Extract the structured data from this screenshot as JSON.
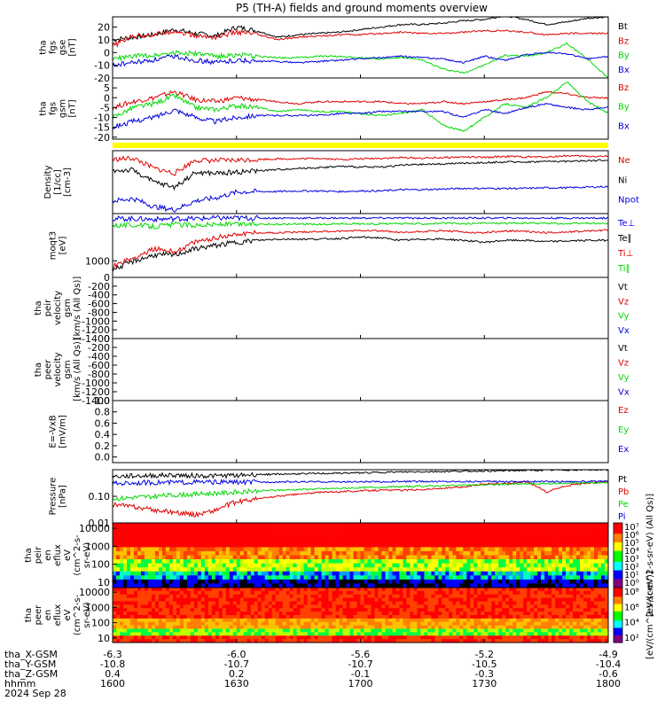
{
  "title": "P5 (TH-A) fields and ground moments overview",
  "colors": {
    "black": "#000000",
    "red": "#e00000",
    "green": "#00d800",
    "blue": "#0000e0",
    "yellow": "#ffff00"
  },
  "chart_data": [
    {
      "type": "line",
      "ylabel": [
        "tha",
        "fgs",
        "gse",
        "[nT]"
      ],
      "ylim": [
        -20,
        28
      ],
      "yticks": [
        "20",
        "10",
        "0",
        "-10",
        "-20"
      ],
      "ytick_values": [
        20,
        10,
        0,
        -10,
        -20
      ],
      "series": [
        {
          "name": "Bt",
          "color": "black",
          "values": [
            10,
            12,
            14,
            18,
            15,
            13,
            20,
            17,
            12,
            14,
            15,
            16,
            18,
            20,
            22,
            22,
            23,
            25,
            26,
            29,
            26,
            22,
            24,
            27,
            28
          ]
        },
        {
          "name": "Bz",
          "color": "red",
          "values": [
            5,
            13,
            14,
            17,
            13,
            12,
            16,
            14,
            10,
            12,
            13,
            14,
            14,
            15,
            16,
            15,
            15,
            16,
            17,
            17,
            16,
            14,
            15,
            15,
            15
          ]
        },
        {
          "name": "By",
          "color": "green",
          "values": [
            -5,
            -3,
            -2,
            0,
            -1,
            -3,
            -2,
            -3,
            -4,
            -4,
            -3,
            -3,
            -4,
            -5,
            -4,
            -6,
            -13,
            -16,
            -10,
            -2,
            -3,
            0,
            7,
            -5,
            -20
          ]
        },
        {
          "name": "Bx",
          "color": "blue",
          "values": [
            -10,
            -8,
            -6,
            -3,
            -6,
            -8,
            -6,
            -7,
            -7,
            -8,
            -7,
            -6,
            -5,
            -4,
            -3,
            -4,
            -5,
            -8,
            -3,
            -6,
            -2,
            0,
            -1,
            -5,
            -3
          ]
        }
      ]
    },
    {
      "type": "line",
      "ylabel": [
        "tha",
        "fgs",
        "gsm",
        "[nT]"
      ],
      "ylim": [
        -21,
        10
      ],
      "yticks": [
        "5",
        "0",
        "-5",
        "-10",
        "-15",
        "-20"
      ],
      "ytick_values": [
        5,
        0,
        -5,
        -10,
        -15,
        -20
      ],
      "series": [
        {
          "name": "Bz",
          "color": "red",
          "values": [
            -5,
            -2,
            0,
            3,
            -1,
            -2,
            0,
            -1,
            -2,
            -3,
            -2,
            -2,
            -2,
            -2,
            -3,
            -3,
            -2,
            -3,
            -2,
            -1,
            0,
            3,
            2,
            0,
            0
          ]
        },
        {
          "name": "By",
          "color": "green",
          "values": [
            -10,
            -5,
            -3,
            1,
            -5,
            -6,
            -4,
            -5,
            -7,
            -6,
            -7,
            -7,
            -8,
            -9,
            -8,
            -6,
            -14,
            -17,
            -10,
            -3,
            -5,
            0,
            8,
            -2,
            -8
          ]
        },
        {
          "name": "Bx",
          "color": "blue",
          "values": [
            -15,
            -12,
            -10,
            -6,
            -10,
            -12,
            -10,
            -9,
            -9,
            -9,
            -9,
            -8,
            -8,
            -7,
            -7,
            -7,
            -7,
            -10,
            -6,
            -8,
            -5,
            -3,
            -5,
            -6,
            -5
          ]
        }
      ]
    },
    {
      "type": "line",
      "ylabel": [
        "Density",
        "[1/cc]",
        "[cm-3]"
      ],
      "ylim": [
        0,
        10
      ],
      "series": [
        {
          "name": "Ne",
          "color": "red",
          "values": [
            8.6,
            8.8,
            7.2,
            6.4,
            8.5,
            8.4,
            8.5,
            8.6,
            8.7,
            8.7,
            8.8,
            8.6,
            8.7,
            8.8,
            8.9,
            8.8,
            8.9,
            9.0,
            8.9,
            9.1,
            9.0,
            9.0,
            9.2,
            9.1,
            9.1
          ]
        },
        {
          "name": "Ni",
          "color": "black",
          "values": [
            6.8,
            6.9,
            5.0,
            4.2,
            6.5,
            6.4,
            6.6,
            6.8,
            7.0,
            7.2,
            7.3,
            7.5,
            7.4,
            7.4,
            7.7,
            7.8,
            7.9,
            8.0,
            8.1,
            8.2,
            8.2,
            8.3,
            8.3,
            8.4,
            8.5
          ]
        },
        {
          "name": "Npot",
          "color": "blue",
          "values": [
            2.0,
            2.4,
            1.1,
            0.6,
            2.0,
            2.5,
            3.4,
            3.5,
            3.5,
            3.6,
            3.6,
            3.5,
            3.6,
            3.6,
            3.8,
            3.8,
            3.9,
            4.0,
            4.0,
            4.0,
            4.0,
            4.1,
            4.1,
            4.2,
            4.3
          ]
        }
      ]
    },
    {
      "type": "line",
      "ylabel": [
        "moqt3",
        "[eV]"
      ],
      "ylim": [
        0,
        10
      ],
      "yticks": [
        "1000"
      ],
      "ytick_values": [
        2.6
      ],
      "series": [
        {
          "name": "Te⊥",
          "color": "blue",
          "values": [
            9.2,
            9.2,
            9.1,
            9.2,
            9.2,
            9.3,
            9.3,
            9.3,
            9.3,
            9.3,
            9.3,
            9.3,
            9.3,
            9.3,
            9.3,
            9.3,
            9.3,
            9.3,
            9.3,
            9.3,
            9.3,
            9.3,
            9.3,
            9.3,
            9.3
          ]
        },
        {
          "name": "Te∥",
          "color": "black",
          "values": [
            1.2,
            2.5,
            3.5,
            3.5,
            4.5,
            5.0,
            5.5,
            5.8,
            6.0,
            6.0,
            6.0,
            6.1,
            6.3,
            6.2,
            5.8,
            6.0,
            6.0,
            5.8,
            5.5,
            5.8,
            5.8,
            5.6,
            5.7,
            5.8,
            5.8
          ]
        },
        {
          "name": "Ti⊥",
          "color": "red",
          "values": [
            1.8,
            3.0,
            4.5,
            4.0,
            5.5,
            6.2,
            6.8,
            7.0,
            7.0,
            7.1,
            7.2,
            7.2,
            7.4,
            7.3,
            7.0,
            7.2,
            7.3,
            7.1,
            7.0,
            7.3,
            7.2,
            7.0,
            7.1,
            7.3,
            7.4
          ]
        },
        {
          "name": "Ti∥",
          "color": "green",
          "values": [
            8.2,
            8.2,
            8.0,
            8.3,
            8.2,
            8.3,
            8.3,
            8.4,
            8.3,
            8.4,
            8.3,
            8.4,
            8.4,
            8.4,
            8.4,
            8.4,
            8.5,
            8.4,
            8.5,
            8.5,
            8.5,
            8.5,
            8.4,
            8.5,
            8.4
          ]
        }
      ]
    },
    {
      "type": "line",
      "ylabel": [
        "tha",
        "peir",
        "velocity",
        "gsm",
        "[km/s (All Qs)]"
      ],
      "ylim": [
        -1400,
        0
      ],
      "yticks": [
        "0",
        "-200",
        "-400",
        "-600",
        "-800",
        "-1000",
        "-1200",
        "-1400"
      ],
      "ytick_values": [
        0,
        -200,
        -400,
        -600,
        -800,
        -1000,
        -1200,
        -1400
      ],
      "series": [
        {
          "name": "Vt",
          "color": "black",
          "values": []
        },
        {
          "name": "Vz",
          "color": "red",
          "values": []
        },
        {
          "name": "Vy",
          "color": "green",
          "values": []
        },
        {
          "name": "Vx",
          "color": "blue",
          "values": []
        }
      ]
    },
    {
      "type": "line",
      "ylabel": [
        "tha",
        "peer",
        "velocity",
        "gsm",
        "[km/s (All Qs)]"
      ],
      "ylim": [
        -1400,
        0
      ],
      "yticks": [
        "0",
        "-200",
        "-400",
        "-600",
        "-800",
        "-1000",
        "-1200",
        "-1400"
      ],
      "ytick_values": [
        0,
        -200,
        -400,
        -600,
        -800,
        -1000,
        -1200,
        -1400
      ],
      "series": [
        {
          "name": "Vt",
          "color": "black",
          "values": []
        },
        {
          "name": "Vz",
          "color": "red",
          "values": []
        },
        {
          "name": "Vy",
          "color": "green",
          "values": []
        },
        {
          "name": "Vx",
          "color": "blue",
          "values": []
        }
      ]
    },
    {
      "type": "line",
      "ylabel": [
        "E=-VxB",
        "[mV/m]"
      ],
      "ylim": [
        -0.1,
        1.0
      ],
      "yticks": [
        "1.0",
        "0.8",
        "0.6",
        "0.4",
        "0.2",
        "0.0"
      ],
      "ytick_values": [
        1.0,
        0.8,
        0.6,
        0.4,
        0.2,
        0.0
      ],
      "series": [
        {
          "name": "Ez",
          "color": "red",
          "values": []
        },
        {
          "name": "Ey",
          "color": "green",
          "values": []
        },
        {
          "name": "Ex",
          "color": "blue",
          "values": []
        }
      ]
    },
    {
      "type": "line",
      "yscale": "log",
      "ylabel": [
        "Pressure",
        "[nPa]"
      ],
      "ylim": [
        0.01,
        1.0
      ],
      "yticks": [
        "0.10",
        "0.01"
      ],
      "ytick_values": [
        0.1,
        0.01
      ],
      "series": [
        {
          "name": "Pt",
          "color": "black",
          "values": [
            0.55,
            0.58,
            0.6,
            0.62,
            0.6,
            0.58,
            0.62,
            0.66,
            0.68,
            0.7,
            0.72,
            0.74,
            0.76,
            0.8,
            0.82,
            0.84,
            0.86,
            0.88,
            0.9,
            0.92,
            0.94,
            0.96,
            0.98,
            1.0,
            1.0
          ]
        },
        {
          "name": "Pb",
          "color": "red",
          "values": [
            0.05,
            0.04,
            0.03,
            0.025,
            0.02,
            0.03,
            0.06,
            0.08,
            0.1,
            0.12,
            0.14,
            0.15,
            0.16,
            0.17,
            0.17,
            0.18,
            0.2,
            0.22,
            0.3,
            0.3,
            0.35,
            0.14,
            0.25,
            0.32,
            0.35
          ]
        },
        {
          "name": "Pe",
          "color": "green",
          "values": [
            0.08,
            0.09,
            0.1,
            0.11,
            0.12,
            0.13,
            0.14,
            0.16,
            0.17,
            0.18,
            0.19,
            0.2,
            0.21,
            0.22,
            0.23,
            0.24,
            0.25,
            0.26,
            0.27,
            0.28,
            0.29,
            0.3,
            0.31,
            0.32,
            0.33
          ]
        },
        {
          "name": "Pi",
          "color": "blue",
          "values": [
            0.3,
            0.32,
            0.33,
            0.33,
            0.34,
            0.34,
            0.34,
            0.34,
            0.35,
            0.35,
            0.35,
            0.35,
            0.35,
            0.35,
            0.36,
            0.36,
            0.36,
            0.36,
            0.36,
            0.36,
            0.36,
            0.36,
            0.36,
            0.36,
            0.36
          ]
        }
      ]
    },
    {
      "type": "heatmap",
      "yscale": "log",
      "ylabel": [
        "tha",
        "peir",
        "en",
        "eflux",
        "eV",
        "(cm^2-s-",
        "sr-eV)"
      ],
      "yticks": [
        "10000",
        "1000",
        "100",
        "10"
      ],
      "ytick_values": [
        10000,
        1000,
        100,
        10
      ],
      "ylim": [
        5,
        20000
      ],
      "colorbar_label": "[eV/(cm^2-s-sr-eV) (All Qs)]",
      "colorbar_ticks": [
        "10⁷",
        "10⁶",
        "10⁵",
        "10⁴",
        "10³",
        "10²",
        "10¹",
        "10⁰"
      ]
    },
    {
      "type": "heatmap",
      "yscale": "log",
      "ylabel": [
        "tha",
        "peer",
        "en",
        "eflux",
        "eV",
        "(cm^2-s-",
        "sr-eV)"
      ],
      "yticks": [
        "10000",
        "1000",
        "100",
        "10"
      ],
      "ytick_values": [
        10000,
        1000,
        100,
        10
      ],
      "ylim": [
        5,
        20000
      ],
      "colorbar_label": "[eV/(cm^2-s-sr-eV)]",
      "colorbar_ticks": [
        "10⁸",
        "10⁶",
        "10⁴",
        "10²"
      ]
    }
  ],
  "x_axis": {
    "row_labels": [
      "tha_X-GSM",
      "tha_Y-GSM",
      "tha_Z-GSM",
      "hhmm",
      "2024 Sep 28"
    ],
    "ticks": [
      {
        "x": "-6.3",
        "y": "-10.8",
        "z": "0.4",
        "hhmm": "1600"
      },
      {
        "x": "-6.0",
        "y": "-10.7",
        "z": "0.2",
        "hhmm": "1630"
      },
      {
        "x": "-5.6",
        "y": "-10.7",
        "z": "-0.1",
        "hhmm": "1700"
      },
      {
        "x": "-5.2",
        "y": "-10.5",
        "z": "-0.3",
        "hhmm": "1730"
      },
      {
        "x": "-4.9",
        "y": "-10.4",
        "z": "-0.6",
        "hhmm": "1800"
      }
    ]
  }
}
